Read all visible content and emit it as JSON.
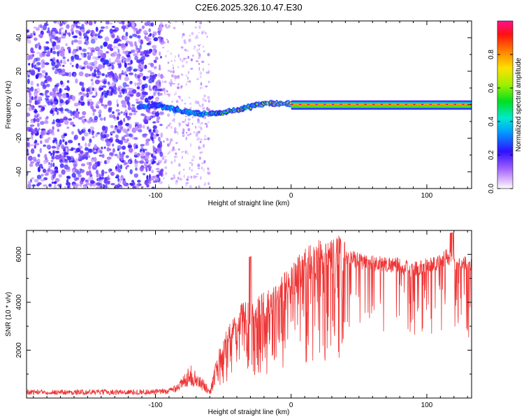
{
  "title": "C2E6.2025.326.10.47.E30",
  "chart_data": [
    {
      "type": "heatmap",
      "xlabel": "Height of straight line (km)",
      "ylabel": "Frequency (Hz)",
      "xlim": [
        -195,
        133
      ],
      "ylim": [
        -50,
        50
      ],
      "xticks": [
        -100,
        0,
        100
      ],
      "yticks": [
        -40,
        -20,
        0,
        20,
        40
      ],
      "colorbar": {
        "label": "Normalized spectral amplitude",
        "ticks": [
          0.0,
          0.2,
          0.4,
          0.6,
          0.8
        ],
        "range": [
          0,
          1
        ]
      },
      "signal_track": [
        {
          "x": -110,
          "y": -1.5
        },
        {
          "x": -100,
          "y": 0
        },
        {
          "x": -90,
          "y": -1.8
        },
        {
          "x": -80,
          "y": -4
        },
        {
          "x": -70,
          "y": -5
        },
        {
          "x": -60,
          "y": -5.5
        },
        {
          "x": -50,
          "y": -4.8
        },
        {
          "x": -40,
          "y": -3.2
        },
        {
          "x": -30,
          "y": -1.2
        },
        {
          "x": -20,
          "y": 0.8
        },
        {
          "x": -10,
          "y": 0.6
        },
        {
          "x": 0,
          "y": 0.3
        },
        {
          "x": 133,
          "y": 0
        }
      ]
    },
    {
      "type": "line",
      "xlabel": "Height of straight line (km)",
      "ylabel": "SNR (10 * v/v)",
      "xlim": [
        -195,
        133
      ],
      "ylim": [
        0,
        7000
      ],
      "xticks": [
        -100,
        0,
        100
      ],
      "yticks": [
        2000,
        4000,
        6000
      ],
      "series": [
        {
          "name": "SNR",
          "color": "#ef3434",
          "x": [
            -195,
            -180,
            -160,
            -140,
            -120,
            -100,
            -90,
            -80,
            -75,
            -70,
            -65,
            -60,
            -55,
            -50,
            -45,
            -40,
            -35,
            -30,
            -25,
            -20,
            -15,
            -10,
            -5,
            0,
            5,
            10,
            20,
            30,
            40,
            50,
            60,
            70,
            80,
            90,
            100,
            110,
            115,
            120,
            125,
            133
          ],
          "y": [
            250,
            250,
            240,
            250,
            250,
            260,
            280,
            600,
            1000,
            750,
            550,
            300,
            1500,
            2200,
            2800,
            3100,
            3600,
            3500,
            3700,
            3900,
            4000,
            4200,
            4700,
            5000,
            5200,
            5500,
            5800,
            5900,
            5900,
            5800,
            5700,
            5650,
            5600,
            5400,
            5600,
            5700,
            6000,
            5800,
            5700,
            5600
          ]
        }
      ]
    }
  ]
}
